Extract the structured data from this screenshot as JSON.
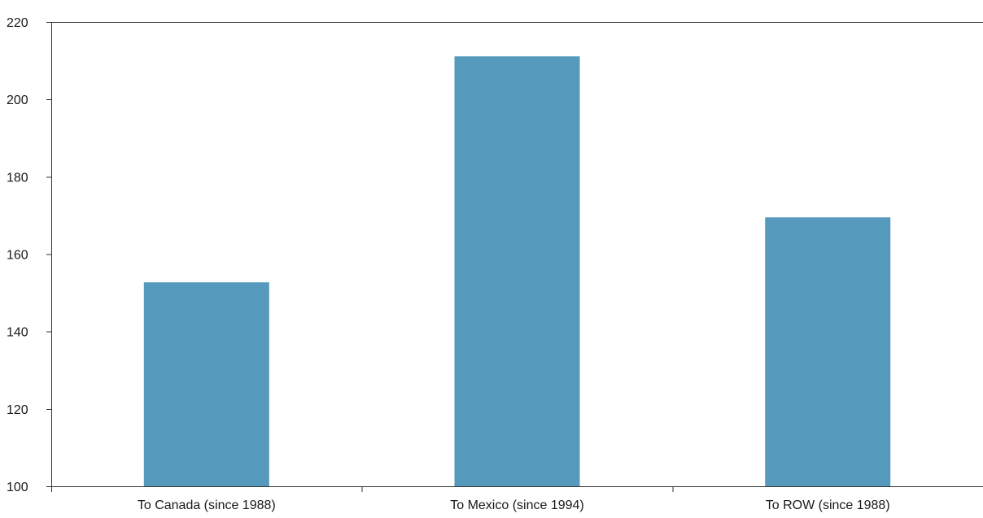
{
  "chart_data": {
    "type": "bar",
    "categories": [
      "To Canada (since 1988)",
      "To Mexico (since 1994)",
      "To ROW (since 1988)"
    ],
    "values": [
      152.7,
      211.1,
      169.5
    ],
    "ylim": [
      100,
      220
    ],
    "yticks": [
      100,
      120,
      140,
      160,
      180,
      200,
      220
    ],
    "title": "",
    "xlabel": "",
    "ylabel": "",
    "grid": false,
    "legend": "none",
    "colors": {
      "bar": "#5599BD",
      "axis": "#333333",
      "text": "#1a1a1a"
    }
  }
}
